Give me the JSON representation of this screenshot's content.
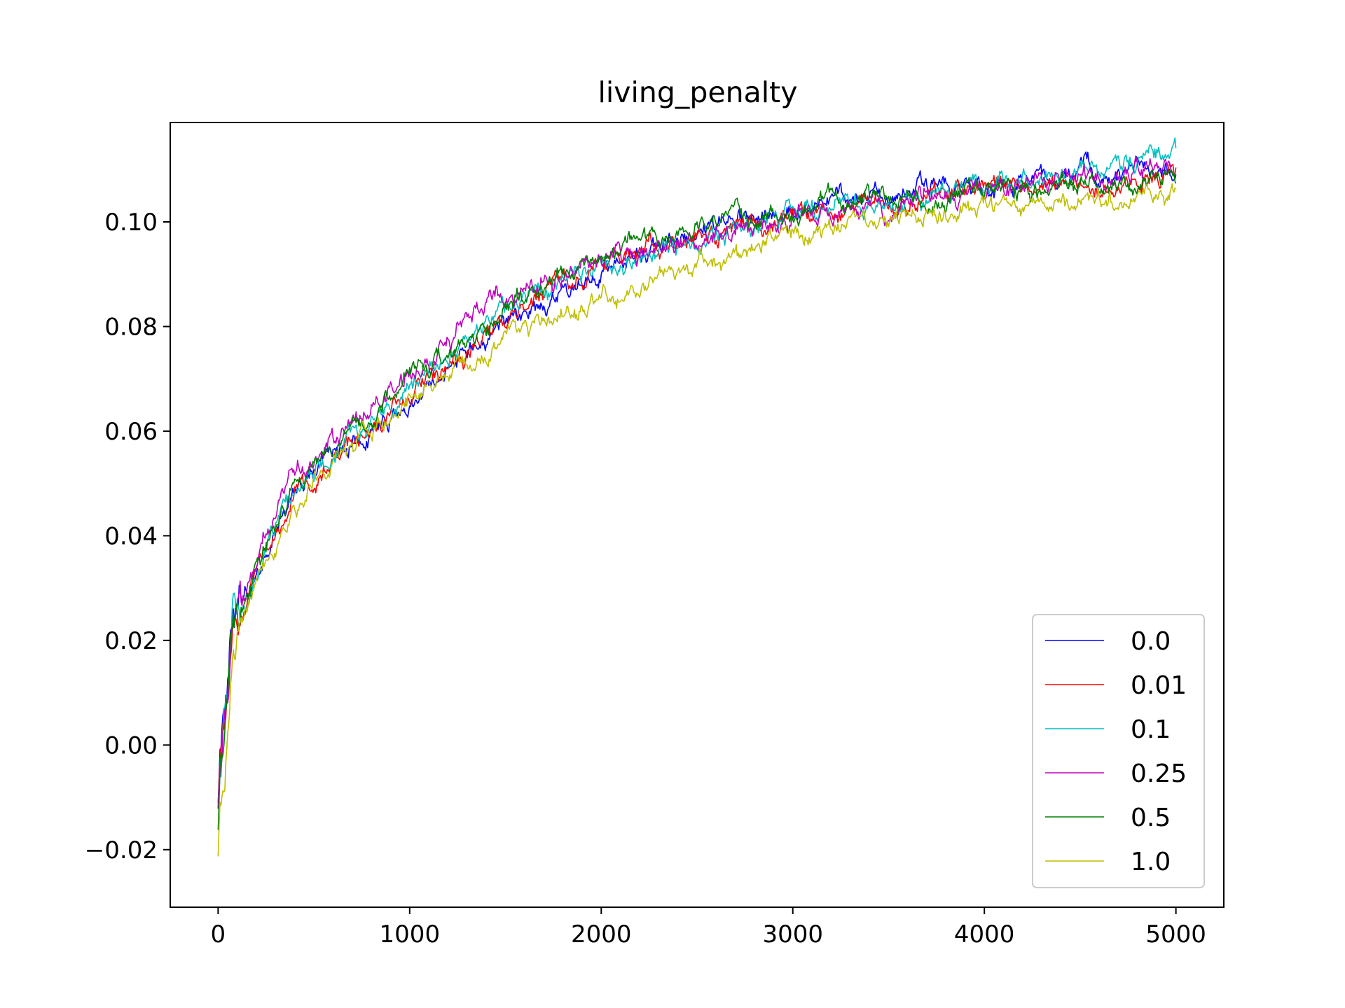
{
  "chart_data": {
    "type": "line",
    "title": "living_penalty",
    "xlabel": "",
    "ylabel": "",
    "xlim": [
      -250,
      5250
    ],
    "ylim": [
      -0.031,
      0.119
    ],
    "xticks": [
      0,
      1000,
      2000,
      3000,
      4000,
      5000
    ],
    "xtick_labels": [
      "0",
      "1000",
      "2000",
      "3000",
      "4000",
      "5000"
    ],
    "yticks": [
      -0.02,
      0.0,
      0.02,
      0.04,
      0.06,
      0.08,
      0.1
    ],
    "ytick_labels": [
      "−0.02",
      "0.00",
      "0.02",
      "0.04",
      "0.06",
      "0.08",
      "0.10"
    ],
    "grid": false,
    "legend_position": "lower-right",
    "x": [
      0,
      10,
      25,
      50,
      75,
      100,
      150,
      200,
      300,
      400,
      500,
      750,
      1000,
      1250,
      1500,
      1750,
      2000,
      2250,
      2500,
      2750,
      3000,
      3250,
      3500,
      3750,
      4000,
      4250,
      4500,
      4750,
      5000
    ],
    "series": [
      {
        "name": "0.0",
        "color": "#0000ff",
        "noise": 0.0011,
        "values": [
          -0.012,
          -0.004,
          0.001,
          0.01,
          0.022,
          0.025,
          0.028,
          0.033,
          0.041,
          0.048,
          0.052,
          0.059,
          0.065,
          0.073,
          0.08,
          0.086,
          0.091,
          0.094,
          0.099,
          0.1,
          0.102,
          0.104,
          0.106,
          0.107,
          0.106,
          0.108,
          0.109,
          0.109,
          0.109
        ]
      },
      {
        "name": "0.01",
        "color": "#ff0000",
        "noise": 0.0011,
        "values": [
          -0.014,
          -0.006,
          0.0,
          0.008,
          0.021,
          0.025,
          0.028,
          0.033,
          0.041,
          0.048,
          0.052,
          0.059,
          0.066,
          0.074,
          0.081,
          0.087,
          0.091,
          0.095,
          0.097,
          0.099,
          0.101,
          0.101,
          0.104,
          0.105,
          0.106,
          0.107,
          0.107,
          0.108,
          0.109
        ]
      },
      {
        "name": "0.1",
        "color": "#00bfbf",
        "noise": 0.0011,
        "values": [
          -0.013,
          -0.005,
          0.001,
          0.01,
          0.024,
          0.026,
          0.029,
          0.034,
          0.042,
          0.049,
          0.053,
          0.061,
          0.067,
          0.076,
          0.083,
          0.087,
          0.091,
          0.094,
          0.096,
          0.099,
          0.101,
          0.103,
          0.104,
          0.105,
          0.106,
          0.108,
          0.109,
          0.111,
          0.112
        ]
      },
      {
        "name": "0.25",
        "color": "#bf00bf",
        "noise": 0.0012,
        "values": [
          -0.014,
          -0.005,
          0.001,
          0.009,
          0.022,
          0.025,
          0.029,
          0.035,
          0.044,
          0.051,
          0.055,
          0.063,
          0.071,
          0.078,
          0.087,
          0.089,
          0.092,
          0.095,
          0.097,
          0.099,
          0.1,
          0.102,
          0.103,
          0.105,
          0.106,
          0.108,
          0.109,
          0.11,
          0.11
        ]
      },
      {
        "name": "0.5",
        "color": "#008000",
        "noise": 0.0011,
        "values": [
          -0.014,
          -0.005,
          0.001,
          0.009,
          0.022,
          0.025,
          0.028,
          0.034,
          0.042,
          0.05,
          0.054,
          0.062,
          0.07,
          0.076,
          0.083,
          0.09,
          0.093,
          0.096,
          0.099,
          0.1,
          0.102,
          0.104,
          0.104,
          0.105,
          0.106,
          0.107,
          0.107,
          0.107,
          0.108
        ]
      },
      {
        "name": "1.0",
        "color": "#bfbf00",
        "noise": 0.0011,
        "values": [
          -0.02,
          -0.012,
          -0.006,
          0.004,
          0.018,
          0.024,
          0.025,
          0.03,
          0.037,
          0.045,
          0.05,
          0.058,
          0.065,
          0.072,
          0.078,
          0.082,
          0.085,
          0.089,
          0.091,
          0.094,
          0.097,
          0.099,
          0.101,
          0.102,
          0.103,
          0.103,
          0.104,
          0.105,
          0.105
        ]
      }
    ]
  }
}
